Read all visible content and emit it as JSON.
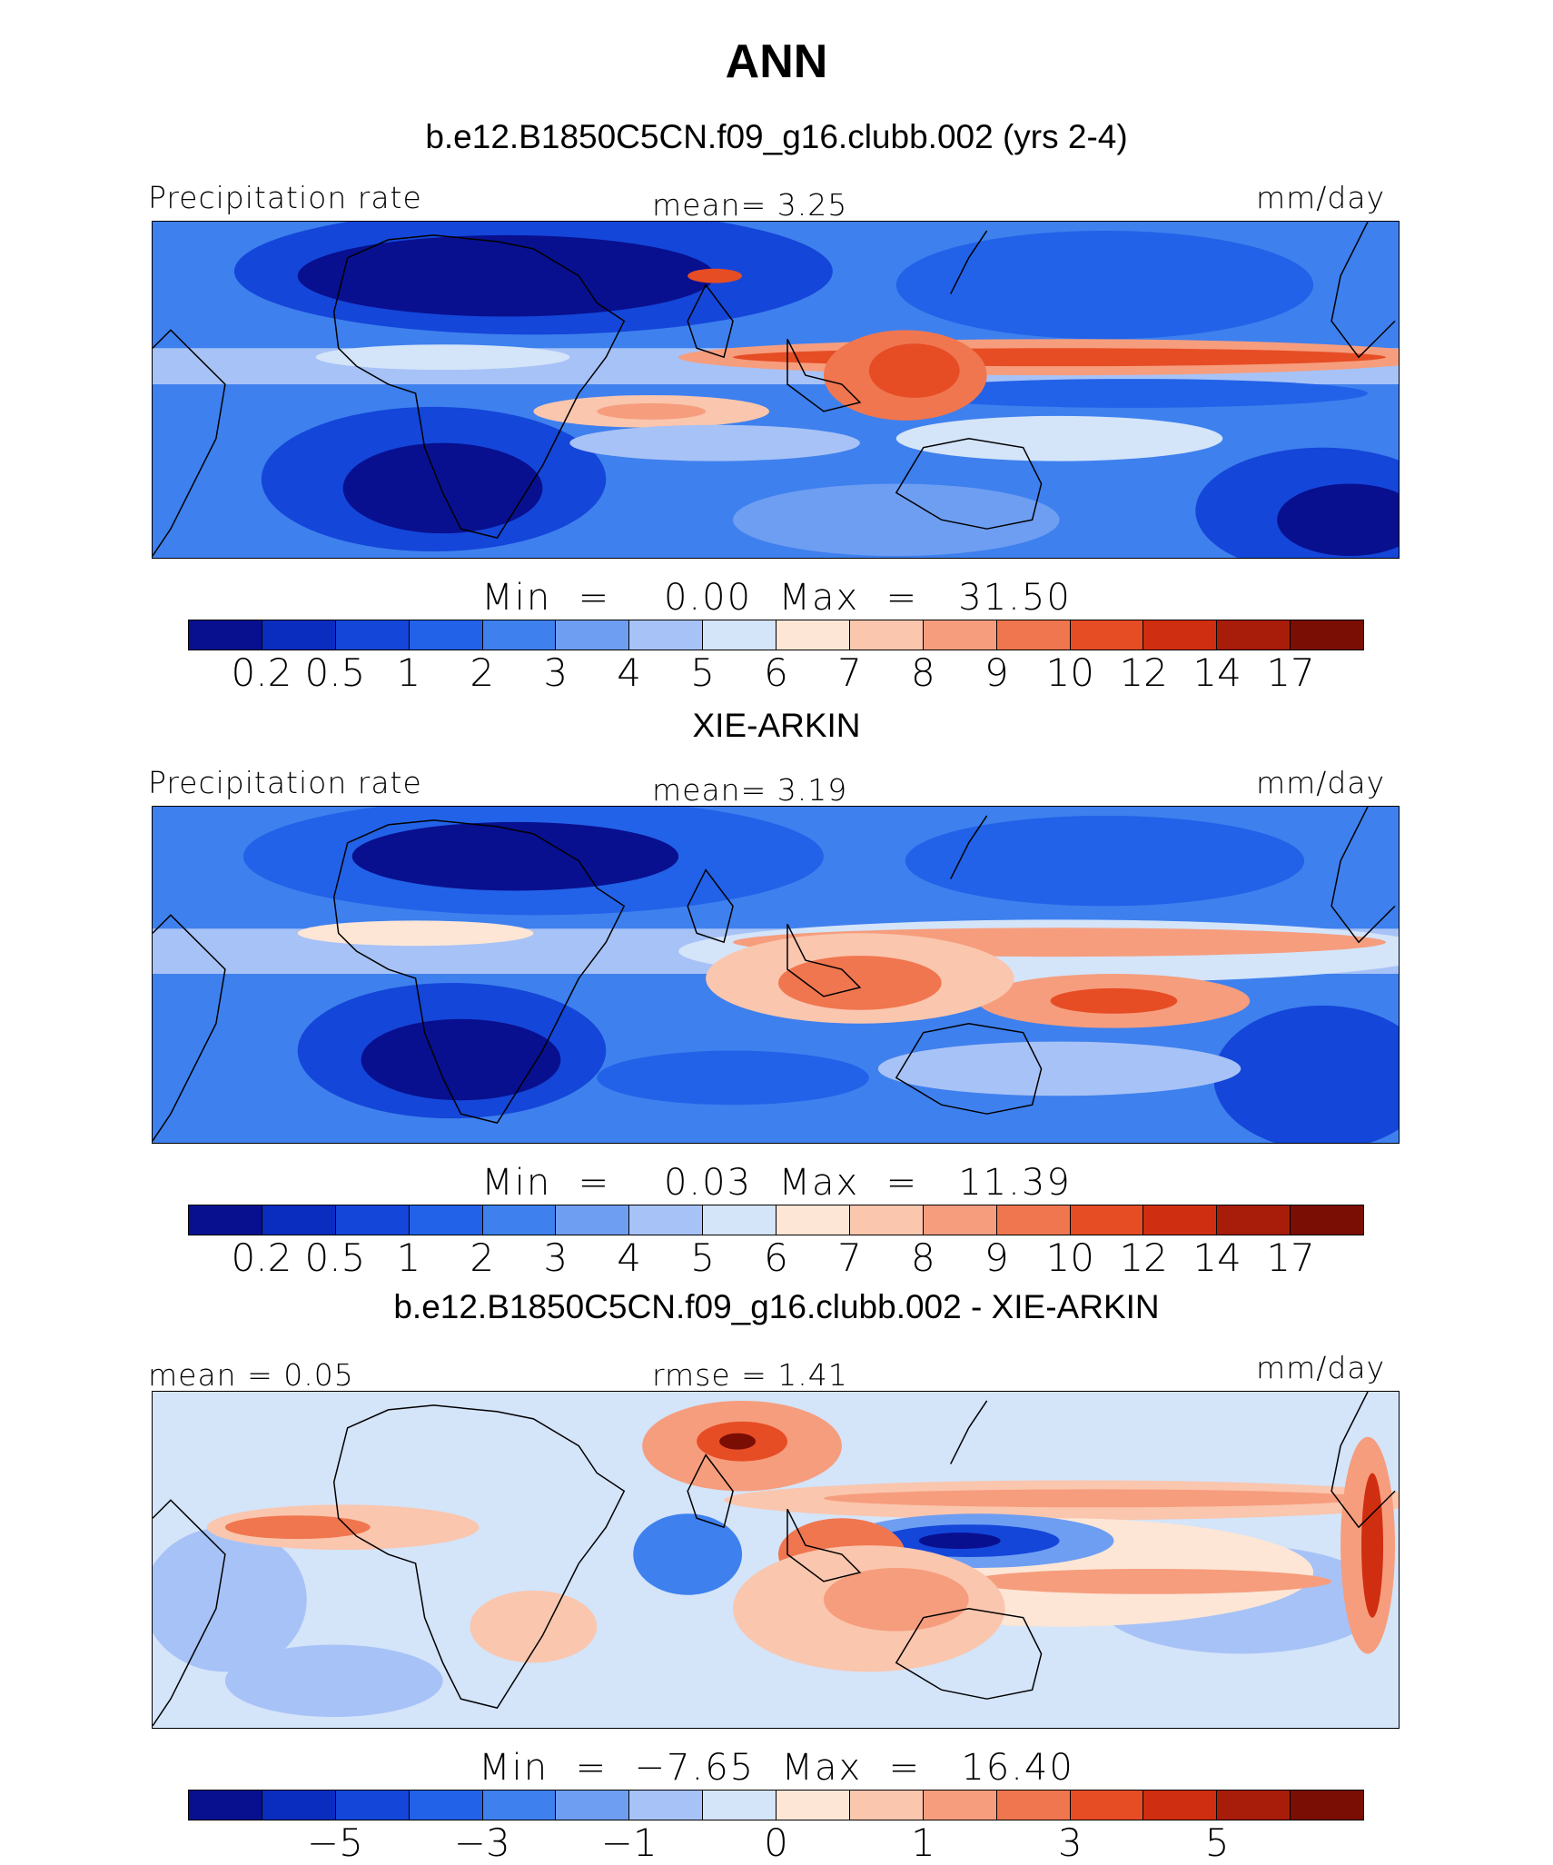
{
  "title": "ANN",
  "colors": {
    "precip_palette": [
      "#08108f",
      "#0a2dbf",
      "#1446d9",
      "#2262e8",
      "#3e80ee",
      "#6e9ef2",
      "#a7c2f6",
      "#d4e4f9",
      "#fde6d6",
      "#fac6ae",
      "#f69d7d",
      "#f0764f",
      "#e64d25",
      "#d02e10",
      "#a81c0a",
      "#7a0d04"
    ],
    "diff_palette": [
      "#08108f",
      "#0a2dbf",
      "#1446d9",
      "#2262e8",
      "#3e80ee",
      "#6e9ef2",
      "#a7c2f6",
      "#d4e4f9",
      "#fde6d6",
      "#fac6ae",
      "#f69d7d",
      "#f0764f",
      "#e64d25",
      "#d02e10",
      "#a81c0a",
      "#7a0d04"
    ]
  },
  "panels": [
    {
      "heading": "b.e12.B1850C5CN.f09_g16.clubb.002 (yrs 2-4)",
      "left_label": "Precipitation rate",
      "center_label": "mean=    3.25",
      "right_label": "mm/day",
      "minmax": "Min  =    0.00  Max  =   31.50",
      "ticks": [
        "0.2",
        "0.5",
        "1",
        "2",
        "3",
        "4",
        "5",
        "6",
        "7",
        "8",
        "9",
        "10",
        "12",
        "14",
        "17"
      ],
      "map_type": "model"
    },
    {
      "heading": "XIE-ARKIN",
      "left_label": "Precipitation rate",
      "center_label": "mean=    3.19",
      "right_label": "mm/day",
      "minmax": "Min  =    0.03  Max  =   11.39",
      "ticks": [
        "0.2",
        "0.5",
        "1",
        "2",
        "3",
        "4",
        "5",
        "6",
        "7",
        "8",
        "9",
        "10",
        "12",
        "14",
        "17"
      ],
      "map_type": "obs"
    },
    {
      "heading": "b.e12.B1850C5CN.f09_g16.clubb.002 - XIE-ARKIN",
      "left_label": "mean  =    0.05",
      "center_label": "rmse  =    1.41",
      "right_label": "mm/day",
      "minmax": "Min  =  −7.65  Max  =   16.40",
      "ticks": [
        "−5",
        "−3",
        "−1",
        "0",
        "1",
        "3",
        "5"
      ],
      "map_type": "diff"
    }
  ]
}
